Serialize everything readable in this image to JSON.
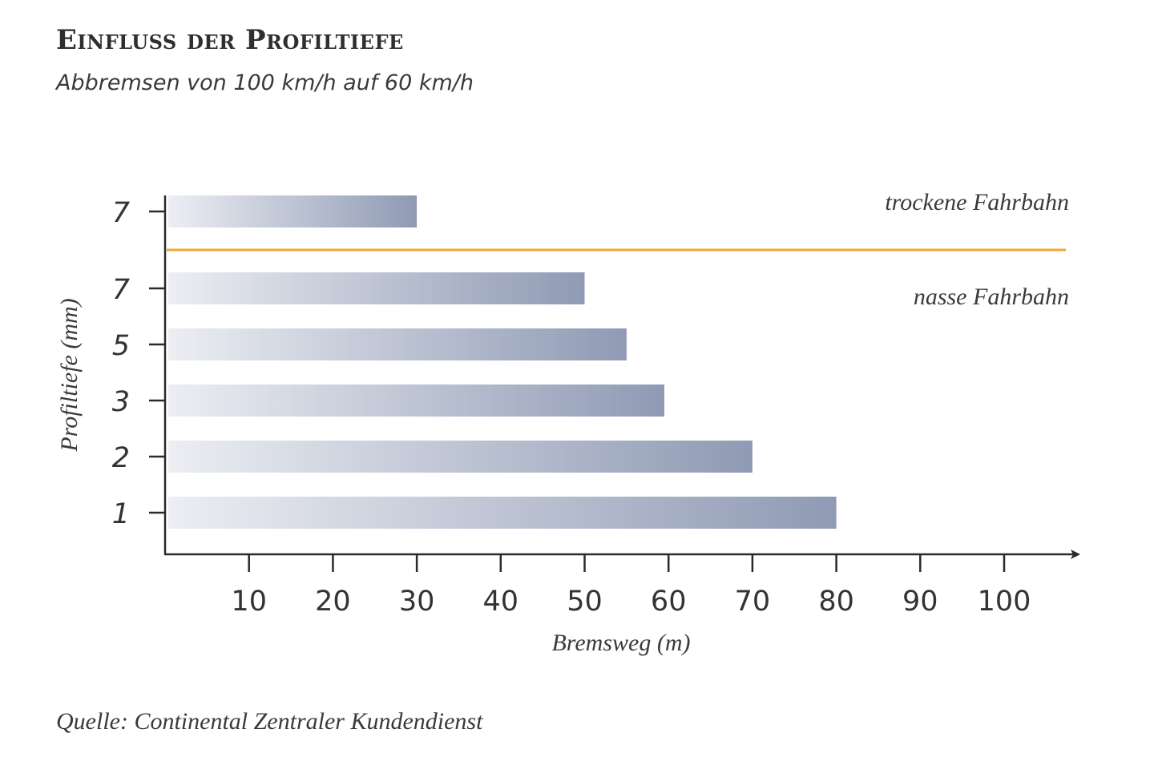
{
  "title": "Einfluss der Profiltiefe",
  "subtitle": "Abbremsen von 100 km/h auf 60 km/h",
  "source": "Quelle: Continental Zentraler Kundendienst",
  "colors": {
    "bar_light": "#eceef3",
    "bar_dark": "#8f9ab4",
    "separator": "#f0a830",
    "axis": "#2a2a2a"
  },
  "chart_data": {
    "type": "bar",
    "orientation": "horizontal",
    "xlabel": "Bremsweg (m)",
    "ylabel": "Profiltiefe (mm)",
    "xlim": [
      0,
      105
    ],
    "xticks": [
      10,
      20,
      30,
      40,
      50,
      60,
      70,
      80,
      90,
      100
    ],
    "groups": [
      {
        "label": "trockene Fahrbahn",
        "bars": [
          {
            "category": "7",
            "value": 30
          }
        ]
      },
      {
        "label": "nasse Fahrbahn",
        "bars": [
          {
            "category": "7",
            "value": 50
          },
          {
            "category": "5",
            "value": 55
          },
          {
            "category": "3",
            "value": 59.5
          },
          {
            "category": "2",
            "value": 70
          },
          {
            "category": "1",
            "value": 80
          }
        ]
      }
    ],
    "grid": false
  }
}
